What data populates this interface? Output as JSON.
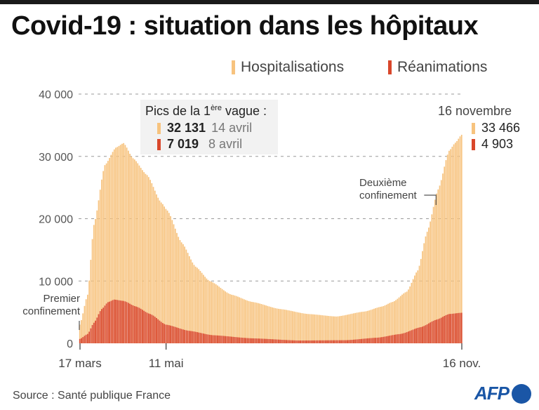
{
  "header": {
    "title": "Covid-19 : situation dans les hôpitaux"
  },
  "legend": [
    {
      "label": "Hospitalisations",
      "color": "#f7c37e"
    },
    {
      "label": "Réanimations",
      "color": "#d9472b"
    }
  ],
  "peaks": {
    "title_prefix": "Pics de la 1",
    "title_sup": "ère",
    "title_suffix": " vague :",
    "rows": [
      {
        "value": "32 131",
        "date": "14 avril",
        "color": "#f7c37e"
      },
      {
        "value": "7 019",
        "date": "8 avril",
        "color": "#d9472b"
      }
    ]
  },
  "latest": {
    "date": "16 novembre",
    "rows": [
      {
        "value": "33 466",
        "color": "#f7c37e"
      },
      {
        "value": "4 903",
        "color": "#d9472b"
      }
    ]
  },
  "annotations": {
    "first_lockdown": [
      "Premier",
      "confinement"
    ],
    "second_lockdown": [
      "Deuxième",
      "confinement"
    ]
  },
  "footer": {
    "source": "Source : Santé publique France",
    "logo": "AFP"
  },
  "chart_data": {
    "type": "bar",
    "title": "Covid-19 : situation dans les hôpitaux",
    "xlabel": "",
    "ylabel": "",
    "ylim": [
      0,
      40000
    ],
    "yticks": [
      0,
      10000,
      20000,
      30000,
      40000
    ],
    "ytick_labels": [
      "0",
      "10 000",
      "20 000",
      "30 000",
      "40 000"
    ],
    "grid": true,
    "legend_position": "top-right",
    "x_start_label": "17 mars",
    "n_days": 245,
    "xticks": [
      {
        "day": 0,
        "label": "17 mars"
      },
      {
        "day": 55,
        "label": "11 mai"
      },
      {
        "day": 244,
        "label": "16 nov."
      }
    ],
    "events": [
      {
        "day": 0,
        "label": "Premier confinement"
      },
      {
        "day": 228,
        "label": "Deuxième confinement"
      }
    ],
    "series": [
      {
        "name": "Hospitalisations",
        "color": "#f7c37e",
        "keypoints_day_value": [
          [
            0,
            3000
          ],
          [
            5,
            7800
          ],
          [
            9,
            19000
          ],
          [
            16,
            28600
          ],
          [
            23,
            31400
          ],
          [
            28,
            32131
          ],
          [
            34,
            29700
          ],
          [
            43,
            27000
          ],
          [
            52,
            22600
          ],
          [
            56,
            21300
          ],
          [
            65,
            16200
          ],
          [
            74,
            12300
          ],
          [
            83,
            10000
          ],
          [
            97,
            7800
          ],
          [
            110,
            6650
          ],
          [
            128,
            5500
          ],
          [
            146,
            4700
          ],
          [
            164,
            4300
          ],
          [
            182,
            5100
          ],
          [
            193,
            5900
          ],
          [
            200,
            6650
          ],
          [
            209,
            8300
          ],
          [
            216,
            11700
          ],
          [
            222,
            17900
          ],
          [
            229,
            24700
          ],
          [
            236,
            30900
          ],
          [
            240,
            32200
          ],
          [
            244,
            33466
          ]
        ]
      },
      {
        "name": "Réanimations",
        "color": "#d9472b",
        "keypoints_day_value": [
          [
            0,
            700
          ],
          [
            5,
            1500
          ],
          [
            9,
            3300
          ],
          [
            14,
            5500
          ],
          [
            18,
            6600
          ],
          [
            22,
            7019
          ],
          [
            28,
            6800
          ],
          [
            36,
            5900
          ],
          [
            45,
            4700
          ],
          [
            55,
            3000
          ],
          [
            70,
            2000
          ],
          [
            85,
            1300
          ],
          [
            110,
            800
          ],
          [
            140,
            450
          ],
          [
            170,
            500
          ],
          [
            190,
            900
          ],
          [
            205,
            1500
          ],
          [
            218,
            2600
          ],
          [
            228,
            3800
          ],
          [
            236,
            4700
          ],
          [
            244,
            4903
          ]
        ]
      }
    ]
  }
}
